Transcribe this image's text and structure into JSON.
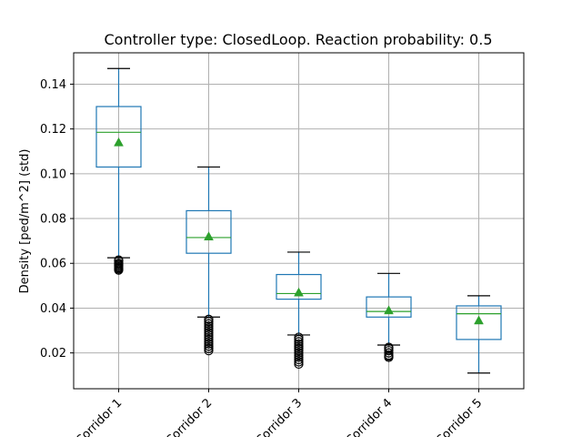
{
  "chart_data": {
    "type": "box",
    "title": "Controller type: ClosedLoop. Reaction probability: 0.5",
    "xlabel": "",
    "ylabel": "Density [ped/m^2] (std)",
    "ylim": [
      0.004,
      0.154
    ],
    "yticks": [
      "0.02",
      "0.04",
      "0.06",
      "0.08",
      "0.10",
      "0.12",
      "0.14"
    ],
    "grid": true,
    "categories": [
      "Corridor 1",
      "Corridor 2",
      "Corridor 3",
      "Corridor 4",
      "Corridor 5"
    ],
    "boxes": [
      {
        "whisker_low": 0.0625,
        "q1": 0.103,
        "median": 0.1185,
        "q3": 0.13,
        "whisker_high": 0.147,
        "mean": 0.114,
        "outliers": [
          0.0615,
          0.061,
          0.06,
          0.0595,
          0.059,
          0.0585,
          0.058,
          0.0575,
          0.057
        ]
      },
      {
        "whisker_low": 0.036,
        "q1": 0.0645,
        "median": 0.0715,
        "q3": 0.0835,
        "whisker_high": 0.103,
        "mean": 0.072,
        "outliers": [
          0.035,
          0.034,
          0.033,
          0.032,
          0.031,
          0.03,
          0.029,
          0.028,
          0.027,
          0.026,
          0.025,
          0.024,
          0.023,
          0.022,
          0.021
        ]
      },
      {
        "whisker_low": 0.028,
        "q1": 0.044,
        "median": 0.0465,
        "q3": 0.055,
        "whisker_high": 0.065,
        "mean": 0.047,
        "outliers": [
          0.027,
          0.026,
          0.025,
          0.024,
          0.023,
          0.022,
          0.021,
          0.02,
          0.019,
          0.018,
          0.017,
          0.016,
          0.015
        ]
      },
      {
        "whisker_low": 0.0235,
        "q1": 0.036,
        "median": 0.0385,
        "q3": 0.045,
        "whisker_high": 0.0555,
        "mean": 0.039,
        "outliers": [
          0.0225,
          0.022,
          0.021,
          0.02,
          0.019,
          0.0185,
          0.018
        ]
      },
      {
        "whisker_low": 0.011,
        "q1": 0.026,
        "median": 0.0375,
        "q3": 0.041,
        "whisker_high": 0.0455,
        "mean": 0.0345,
        "outliers": []
      }
    ],
    "colors": {
      "box": "#1f77b4",
      "median": "#2ca02c",
      "mean": "#2ca02c",
      "grid": "#b0b0b0",
      "outlier": "#000000"
    }
  }
}
